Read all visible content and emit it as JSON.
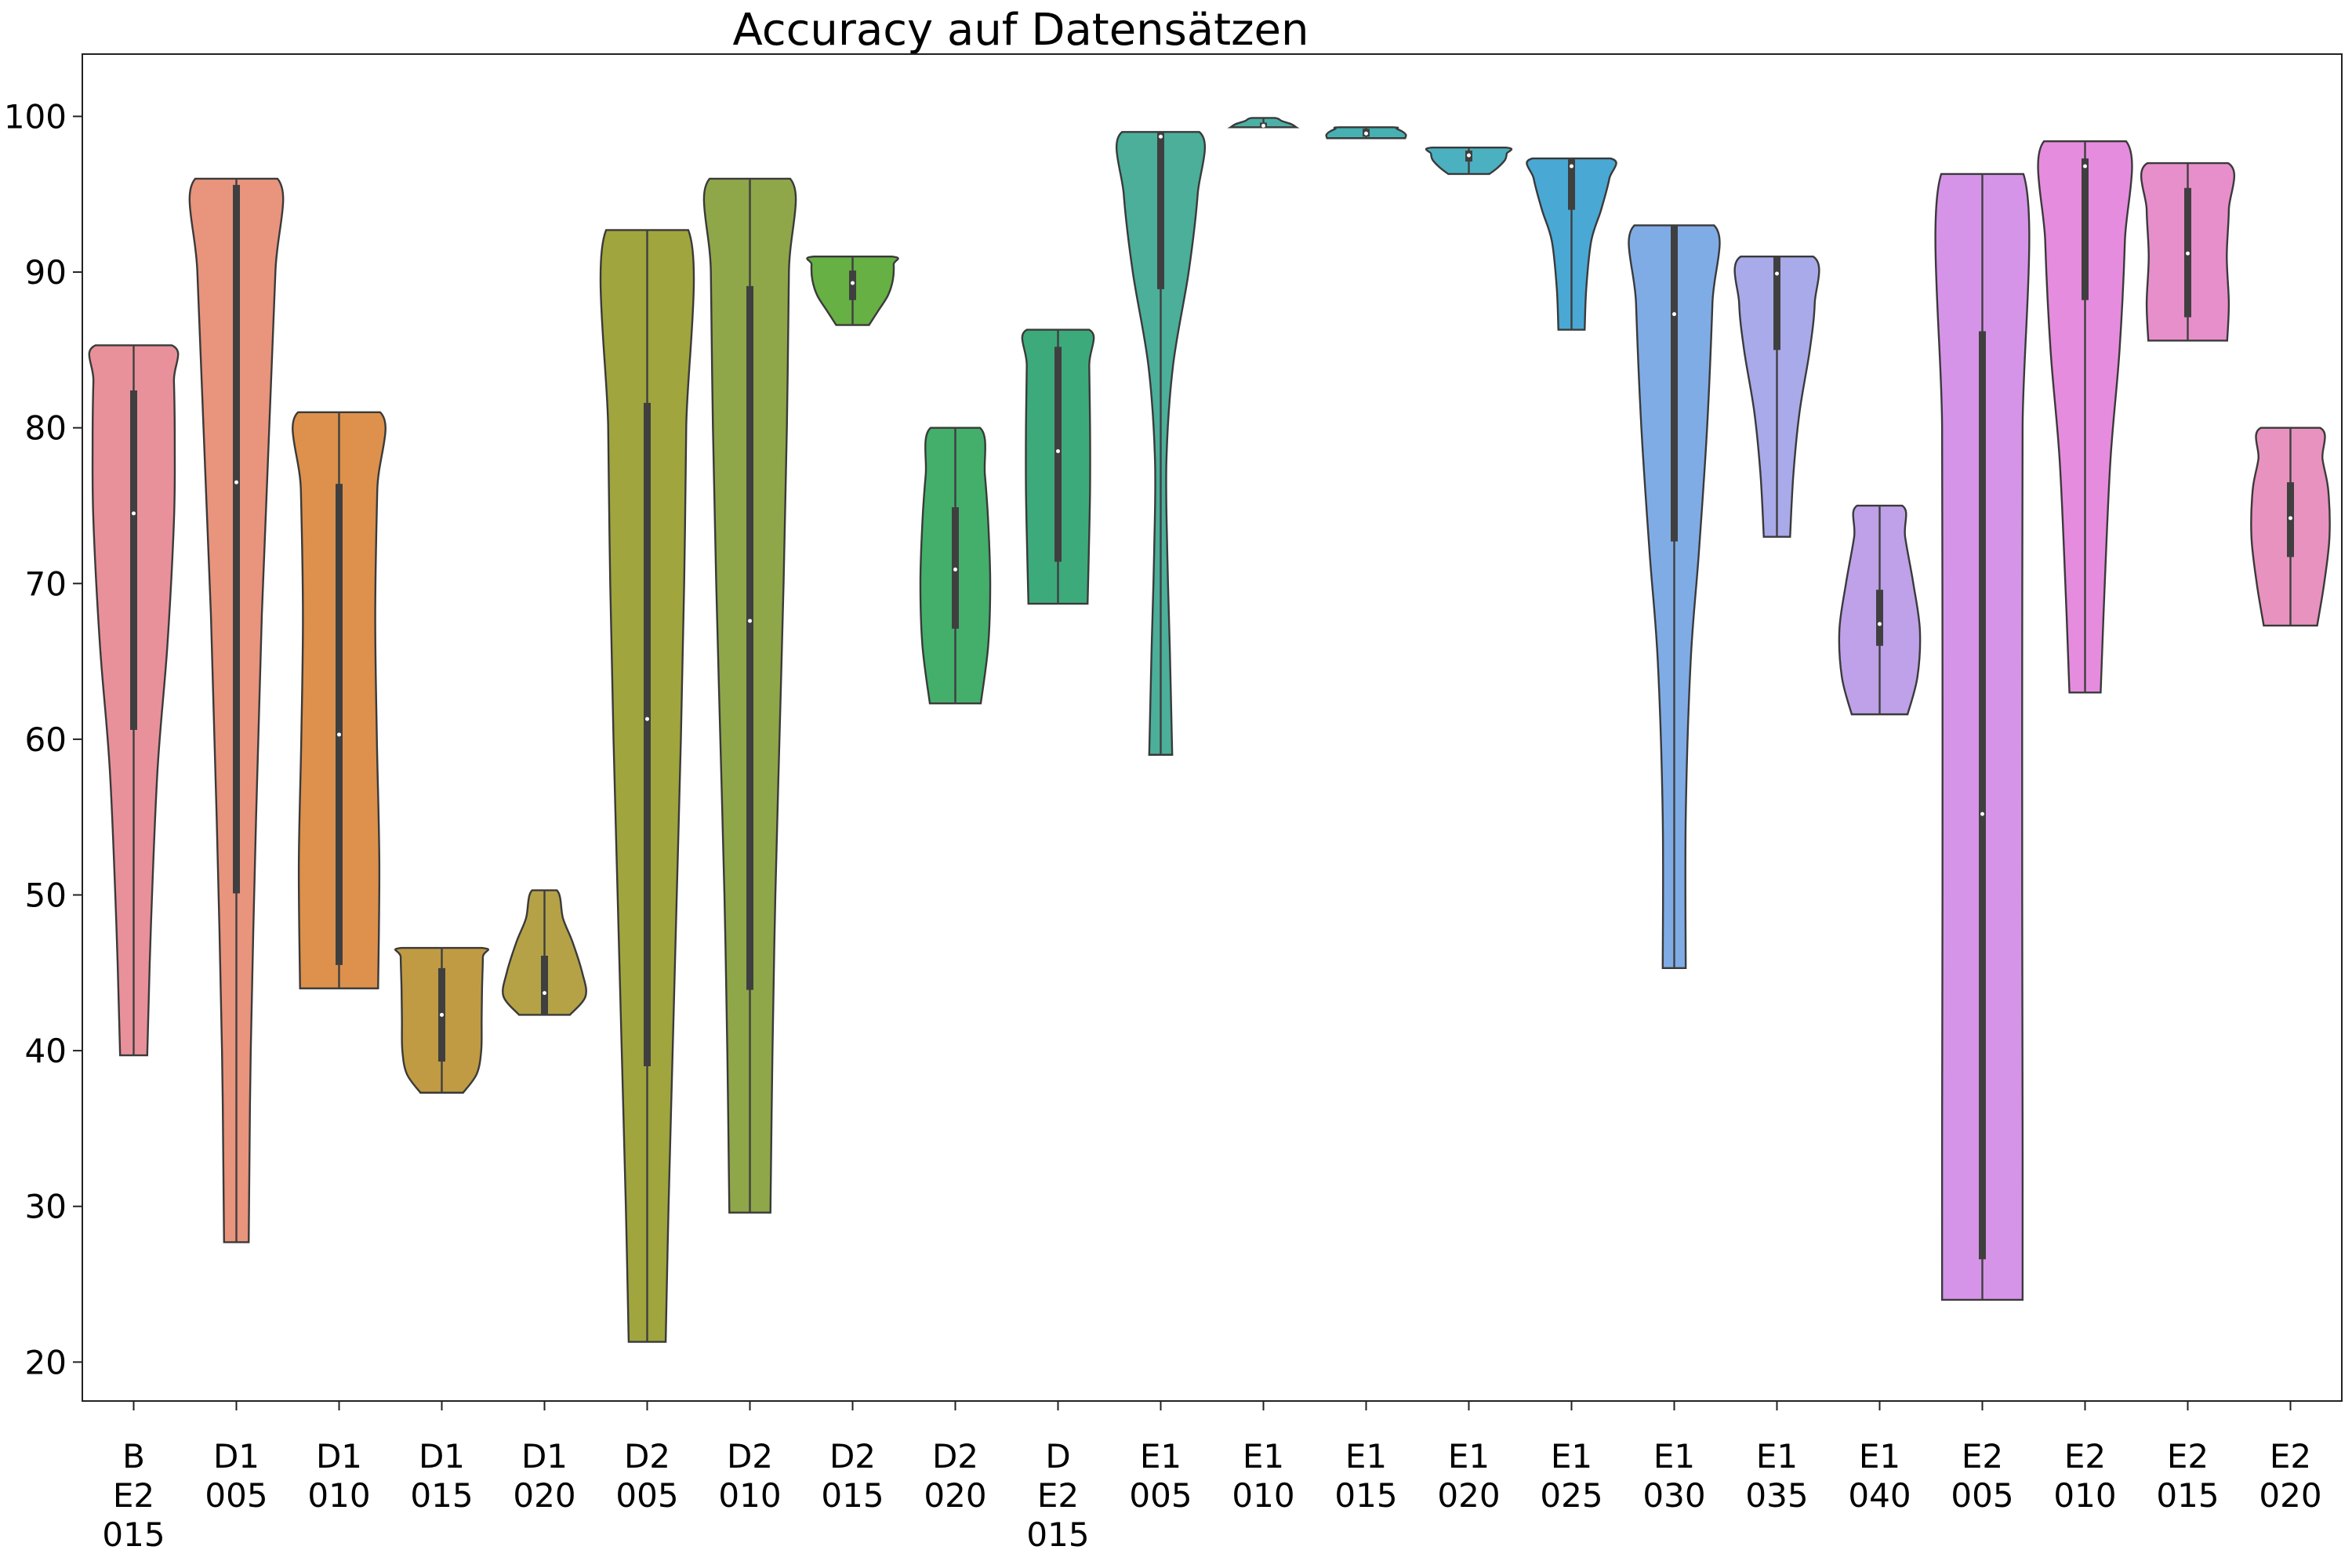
{
  "chart_data": {
    "type": "violin",
    "title": "Accuracy auf Datensätzen",
    "xlabel": "",
    "ylabel": "",
    "ylim": [
      17.5,
      104
    ],
    "yticks": [
      20,
      30,
      40,
      50,
      60,
      70,
      80,
      90,
      100
    ],
    "grid": false,
    "categories": [
      {
        "label": "B\nE2\n015",
        "color": "#e8919b",
        "min": 39.7,
        "q1": 60.6,
        "median": 74.5,
        "q3": 82.4,
        "max": 85.3,
        "shape": [
          [
            39.7,
            0.33
          ],
          [
            48,
            0.42
          ],
          [
            58,
            0.58
          ],
          [
            66,
            0.82
          ],
          [
            74,
            0.98
          ],
          [
            79,
            1.0
          ],
          [
            83,
            0.98
          ],
          [
            85.3,
            0.93
          ]
        ]
      },
      {
        "label": "D1\n005",
        "color": "#e9947d",
        "min": 27.7,
        "q1": 50.1,
        "median": 76.5,
        "q3": 95.6,
        "max": 96.0,
        "shape": [
          [
            27.7,
            0.3
          ],
          [
            40,
            0.35
          ],
          [
            55,
            0.48
          ],
          [
            68,
            0.62
          ],
          [
            80,
            0.8
          ],
          [
            90,
            0.95
          ],
          [
            96,
            1.0
          ]
        ]
      },
      {
        "label": "D1\n010",
        "color": "#dd914c",
        "min": 44.0,
        "q1": 45.5,
        "median": 60.3,
        "q3": 76.4,
        "max": 81.0,
        "shape": [
          [
            44,
            0.95
          ],
          [
            52,
            0.98
          ],
          [
            60,
            0.92
          ],
          [
            68,
            0.88
          ],
          [
            76,
            0.93
          ],
          [
            81,
            1.0
          ]
        ]
      },
      {
        "label": "D1\n015",
        "color": "#c09b43",
        "min": 37.3,
        "q1": 39.3,
        "median": 42.3,
        "q3": 45.3,
        "max": 46.6,
        "shape": [
          [
            37.3,
            0.52
          ],
          [
            38.5,
            0.85
          ],
          [
            40,
            0.96
          ],
          [
            42,
            0.97
          ],
          [
            44,
            0.98
          ],
          [
            46,
            1.0
          ],
          [
            46.6,
            0.98
          ]
        ]
      },
      {
        "label": "D1\n020",
        "color": "#b5a247",
        "min": 42.3,
        "q1": 42.3,
        "median": 43.7,
        "q3": 46.1,
        "max": 50.3,
        "shape": [
          [
            42.3,
            0.62
          ],
          [
            43.5,
            1.0
          ],
          [
            45,
            0.92
          ],
          [
            47,
            0.68
          ],
          [
            48.5,
            0.45
          ],
          [
            50.3,
            0.3
          ]
        ]
      },
      {
        "label": "D2\n005",
        "color": "#a0a53e",
        "min": 21.3,
        "q1": 39.0,
        "median": 61.3,
        "q3": 81.6,
        "max": 92.7,
        "shape": [
          [
            21.3,
            0.45
          ],
          [
            30,
            0.52
          ],
          [
            40,
            0.62
          ],
          [
            50,
            0.72
          ],
          [
            60,
            0.82
          ],
          [
            70,
            0.9
          ],
          [
            80,
            0.95
          ],
          [
            92.7,
            1.0
          ]
        ]
      },
      {
        "label": "D2\n010",
        "color": "#8fa749",
        "min": 29.6,
        "q1": 43.9,
        "median": 67.6,
        "q3": 89.1,
        "max": 96.0,
        "shape": [
          [
            29.6,
            0.5
          ],
          [
            40,
            0.55
          ],
          [
            50,
            0.62
          ],
          [
            60,
            0.72
          ],
          [
            70,
            0.82
          ],
          [
            80,
            0.9
          ],
          [
            90,
            0.95
          ],
          [
            96,
            0.98
          ]
        ]
      },
      {
        "label": "D2\n015",
        "color": "#67b043",
        "min": 86.6,
        "q1": 88.2,
        "median": 89.3,
        "q3": 90.1,
        "max": 91.0,
        "shape": [
          [
            86.6,
            0.4
          ],
          [
            87.5,
            0.62
          ],
          [
            88.5,
            0.86
          ],
          [
            89.5,
            0.98
          ],
          [
            90.5,
            1.0
          ],
          [
            91,
            0.95
          ]
        ]
      },
      {
        "label": "D2\n020",
        "color": "#43af6a",
        "min": 62.3,
        "q1": 67.1,
        "median": 70.9,
        "q3": 74.9,
        "max": 80.0,
        "shape": [
          [
            62.3,
            0.62
          ],
          [
            66,
            0.8
          ],
          [
            70,
            0.85
          ],
          [
            74,
            0.8
          ],
          [
            77,
            0.72
          ],
          [
            80,
            0.6
          ]
        ]
      },
      {
        "label": "D\nE2\n015",
        "color": "#3daa7c",
        "min": 68.7,
        "q1": 71.4,
        "median": 78.5,
        "q3": 85.2,
        "max": 86.3,
        "shape": [
          [
            68.7,
            0.72
          ],
          [
            72,
            0.75
          ],
          [
            76,
            0.78
          ],
          [
            80,
            0.78
          ],
          [
            84,
            0.76
          ],
          [
            86.3,
            0.76
          ]
        ]
      },
      {
        "label": "E1\n005",
        "color": "#4baf9a",
        "min": 59.0,
        "q1": 88.9,
        "median": 98.7,
        "q3": 99.0,
        "max": 99.0,
        "shape": [
          [
            59,
            0.28
          ],
          [
            66,
            0.22
          ],
          [
            72,
            0.16
          ],
          [
            78,
            0.14
          ],
          [
            84,
            0.3
          ],
          [
            90,
            0.68
          ],
          [
            95,
            0.9
          ],
          [
            99,
            0.94
          ]
        ]
      },
      {
        "label": "E1\n010",
        "color": "#4cb0a6",
        "min": 99.3,
        "q1": 99.3,
        "median": 99.4,
        "q3": 99.6,
        "max": 99.9,
        "shape": [
          [
            99.3,
            0.8
          ],
          [
            99.5,
            0.68
          ],
          [
            99.7,
            0.45
          ],
          [
            99.9,
            0.28
          ]
        ]
      },
      {
        "label": "E1\n015",
        "color": "#47b0b2",
        "min": 98.6,
        "q1": 98.7,
        "median": 98.9,
        "q3": 99.2,
        "max": 99.3,
        "shape": [
          [
            98.6,
            0.95
          ],
          [
            98.8,
            0.97
          ],
          [
            99.0,
            0.9
          ],
          [
            99.2,
            0.75
          ],
          [
            99.3,
            0.65
          ]
        ]
      },
      {
        "label": "E1\n020",
        "color": "#4bb0c0",
        "min": 96.3,
        "q1": 97.1,
        "median": 97.5,
        "q3": 97.8,
        "max": 98.0,
        "shape": [
          [
            96.3,
            0.5
          ],
          [
            96.7,
            0.7
          ],
          [
            97.2,
            0.88
          ],
          [
            97.6,
            0.92
          ],
          [
            98.0,
            0.9
          ]
        ]
      },
      {
        "label": "E1\n025",
        "color": "#4aa8d4",
        "min": 86.3,
        "q1": 94.0,
        "median": 96.8,
        "q3": 97.3,
        "max": 97.3,
        "shape": [
          [
            86.3,
            0.32
          ],
          [
            89,
            0.36
          ],
          [
            92,
            0.48
          ],
          [
            94,
            0.72
          ],
          [
            96,
            0.92
          ],
          [
            97.3,
            0.95
          ]
        ]
      },
      {
        "label": "E1\n030",
        "color": "#80ace6",
        "min": 45.3,
        "q1": 72.7,
        "median": 87.3,
        "q3": 93.0,
        "max": 93.0,
        "shape": [
          [
            45.3,
            0.28
          ],
          [
            55,
            0.28
          ],
          [
            65,
            0.4
          ],
          [
            72,
            0.6
          ],
          [
            80,
            0.8
          ],
          [
            88,
            0.93
          ],
          [
            93,
            0.97
          ]
        ]
      },
      {
        "label": "E1\n035",
        "color": "#a9aae9",
        "min": 73.0,
        "q1": 85.0,
        "median": 89.9,
        "q3": 91.0,
        "max": 91.0,
        "shape": [
          [
            73,
            0.32
          ],
          [
            77,
            0.4
          ],
          [
            81,
            0.55
          ],
          [
            85,
            0.8
          ],
          [
            88,
            0.92
          ],
          [
            91,
            0.88
          ]
        ]
      },
      {
        "label": "E1\n040",
        "color": "#bea1e8",
        "min": 61.6,
        "q1": 66.0,
        "median": 67.4,
        "q3": 69.6,
        "max": 75.0,
        "shape": [
          [
            61.6,
            0.68
          ],
          [
            64,
            0.92
          ],
          [
            67,
            0.98
          ],
          [
            70,
            0.82
          ],
          [
            73,
            0.62
          ],
          [
            75,
            0.55
          ]
        ]
      },
      {
        "label": "E2\n005",
        "color": "#d694e8",
        "min": 24.0,
        "q1": 26.6,
        "median": 55.2,
        "q3": 86.2,
        "max": 96.3,
        "shape": [
          [
            24,
            0.98
          ],
          [
            35,
            0.98
          ],
          [
            50,
            0.97
          ],
          [
            65,
            0.97
          ],
          [
            80,
            0.98
          ],
          [
            96.3,
            1.0
          ]
        ]
      },
      {
        "label": "E2\n010",
        "color": "#e68cde",
        "min": 63.0,
        "q1": 88.2,
        "median": 96.8,
        "q3": 97.3,
        "max": 98.4,
        "shape": [
          [
            63,
            0.38
          ],
          [
            70,
            0.48
          ],
          [
            78,
            0.62
          ],
          [
            85,
            0.84
          ],
          [
            92,
            0.97
          ],
          [
            98.4,
            1.0
          ]
        ]
      },
      {
        "label": "E2\n015",
        "color": "#e78fcb",
        "min": 85.6,
        "q1": 87.1,
        "median": 91.2,
        "q3": 95.4,
        "max": 97.0,
        "shape": [
          [
            85.6,
            0.96
          ],
          [
            88,
            1.0
          ],
          [
            91,
            0.95
          ],
          [
            94,
            1.0
          ],
          [
            97,
            0.98
          ]
        ]
      },
      {
        "label": "E2\n020",
        "color": "#e892bf",
        "min": 67.3,
        "q1": 71.7,
        "median": 74.2,
        "q3": 76.5,
        "max": 80.0,
        "shape": [
          [
            67.3,
            0.65
          ],
          [
            70,
            0.82
          ],
          [
            73,
            0.95
          ],
          [
            76,
            0.92
          ],
          [
            78,
            0.78
          ],
          [
            80,
            0.72
          ]
        ]
      }
    ]
  }
}
